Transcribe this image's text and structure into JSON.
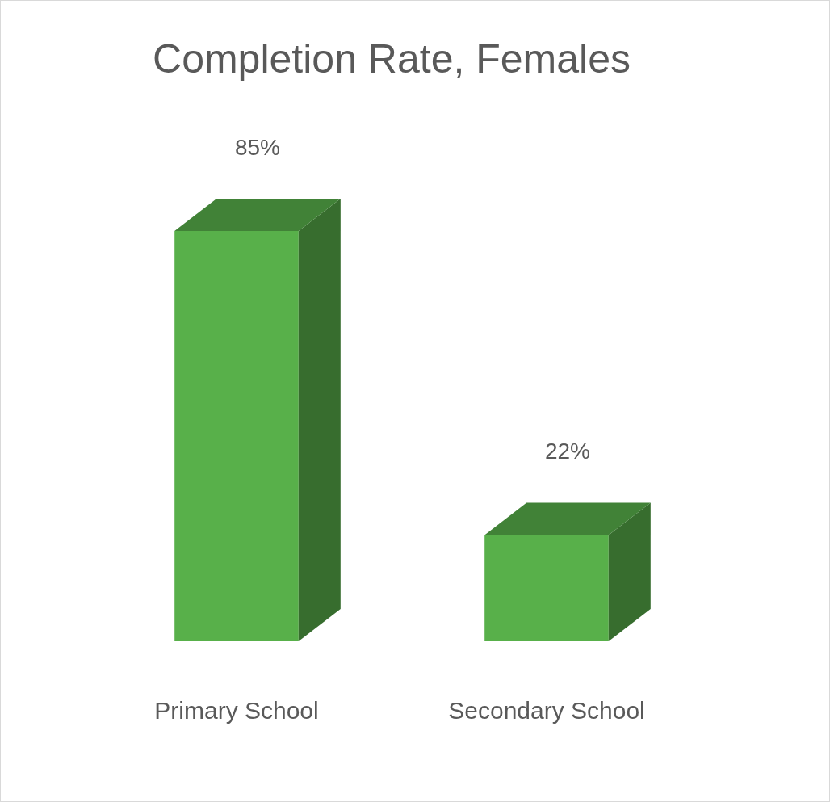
{
  "chart_data": {
    "type": "bar",
    "title": "Completion Rate, Females",
    "categories": [
      "Primary School",
      "Secondary School"
    ],
    "values": [
      85,
      22
    ],
    "value_labels": [
      "85%",
      "22%"
    ],
    "color": "#58b04a",
    "grid": false,
    "data_labels": true,
    "tick_labels": "x"
  }
}
